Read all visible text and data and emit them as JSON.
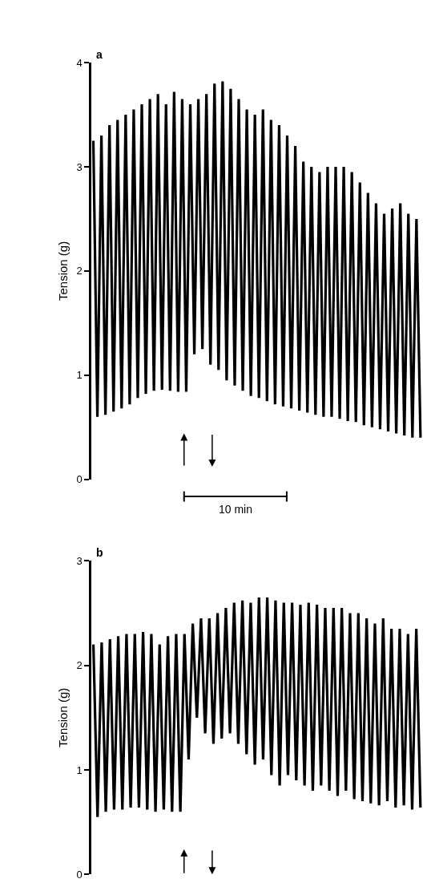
{
  "chart_data": [
    {
      "type": "line",
      "title": "a",
      "ylabel": "Tension (g)",
      "tick_labels": "y",
      "grid": false,
      "marker": "none",
      "line_style": "solid",
      "ylim": [
        0,
        4
      ],
      "yticks": [
        0,
        1,
        2,
        3,
        4
      ],
      "annotations": [
        "10 min"
      ],
      "categories": [
        null,
        null,
        null,
        null,
        null,
        null,
        null,
        null,
        null,
        null,
        null,
        null,
        null,
        null,
        null,
        null,
        null,
        null,
        null,
        null,
        null,
        null,
        null,
        null,
        null,
        null,
        null,
        null,
        null,
        null,
        null,
        null,
        null,
        null,
        null,
        null,
        null,
        null,
        null,
        null,
        null,
        null,
        null,
        null,
        null,
        null,
        null,
        null,
        null,
        null,
        null,
        null,
        null,
        null,
        null,
        null,
        null,
        null,
        null,
        null,
        null,
        null,
        null,
        null,
        null,
        null,
        null,
        null,
        null,
        null,
        null,
        null,
        null,
        null,
        null,
        null,
        null,
        null,
        null,
        null,
        null,
        null
      ],
      "series": [
        {
          "color": "#000000",
          "values": [
            3.25,
            0.6,
            3.3,
            0.62,
            3.4,
            0.65,
            3.45,
            0.68,
            3.5,
            0.72,
            3.55,
            0.78,
            3.6,
            0.82,
            3.65,
            0.85,
            3.7,
            0.86,
            3.6,
            0.85,
            3.72,
            0.84,
            3.65,
            0.84,
            3.6,
            1.2,
            3.65,
            1.25,
            3.7,
            1.1,
            3.8,
            1.05,
            3.82,
            0.95,
            3.75,
            0.9,
            3.65,
            0.85,
            3.55,
            0.8,
            3.5,
            0.78,
            3.55,
            0.75,
            3.45,
            0.72,
            3.4,
            0.7,
            3.3,
            0.68,
            3.2,
            0.66,
            3.05,
            0.64,
            3.0,
            0.62,
            2.95,
            0.6,
            3.0,
            0.6,
            3.0,
            0.58,
            3.0,
            0.56,
            2.95,
            0.55,
            2.85,
            0.52,
            2.75,
            0.5,
            2.65,
            0.48,
            2.55,
            0.46,
            2.6,
            0.44,
            2.65,
            0.42,
            2.55,
            0.4,
            2.5,
            0.4
          ]
        }
      ]
    },
    {
      "type": "line",
      "title": "b",
      "ylabel": "Tension (g)",
      "tick_labels": "y",
      "grid": false,
      "marker": "none",
      "line_style": "solid",
      "ylim": [
        0,
        3
      ],
      "yticks": [
        0,
        1,
        2,
        3
      ],
      "categories": [
        null,
        null,
        null,
        null,
        null,
        null,
        null,
        null,
        null,
        null,
        null,
        null,
        null,
        null,
        null,
        null,
        null,
        null,
        null,
        null,
        null,
        null,
        null,
        null,
        null,
        null,
        null,
        null,
        null,
        null,
        null,
        null,
        null,
        null,
        null,
        null,
        null,
        null,
        null,
        null,
        null,
        null,
        null,
        null,
        null,
        null,
        null,
        null,
        null,
        null,
        null,
        null,
        null,
        null,
        null,
        null,
        null,
        null,
        null,
        null,
        null,
        null,
        null,
        null,
        null,
        null,
        null,
        null,
        null,
        null,
        null,
        null,
        null,
        null,
        null,
        null,
        null,
        null,
        null,
        null
      ],
      "series": [
        {
          "color": "#000000",
          "values": [
            2.2,
            0.55,
            2.22,
            0.6,
            2.25,
            0.62,
            2.28,
            0.62,
            2.3,
            0.64,
            2.3,
            0.64,
            2.32,
            0.62,
            2.3,
            0.6,
            2.2,
            0.62,
            2.28,
            0.6,
            2.3,
            0.6,
            2.3,
            1.1,
            2.4,
            1.5,
            2.45,
            1.35,
            2.45,
            1.25,
            2.5,
            1.3,
            2.55,
            1.35,
            2.6,
            1.25,
            2.62,
            1.15,
            2.6,
            1.05,
            2.65,
            1.1,
            2.65,
            0.95,
            2.62,
            0.85,
            2.6,
            0.95,
            2.6,
            0.9,
            2.58,
            0.85,
            2.6,
            0.8,
            2.58,
            0.85,
            2.55,
            0.8,
            2.55,
            0.75,
            2.55,
            0.8,
            2.5,
            0.72,
            2.5,
            0.7,
            2.45,
            0.68,
            2.4,
            0.66,
            2.45,
            0.7,
            2.35,
            0.64,
            2.35,
            0.66,
            2.3,
            0.62,
            2.35,
            0.64
          ]
        }
      ]
    }
  ]
}
